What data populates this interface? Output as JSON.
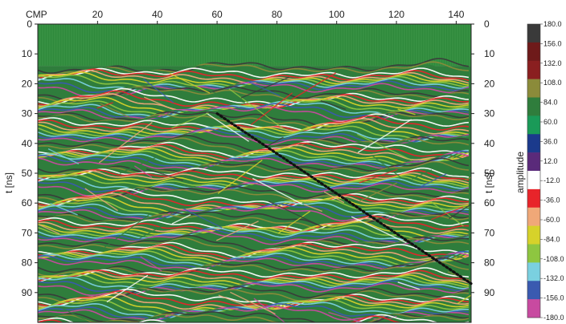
{
  "chart_data": {
    "type": "heatmap",
    "description_type": "ground-penetrating radar section",
    "x_axis": {
      "label": "CMP",
      "range": [
        0,
        145
      ],
      "ticks": [
        20,
        40,
        60,
        80,
        100,
        120,
        140
      ]
    },
    "y_axis": {
      "label": "t [ns]",
      "range": [
        0,
        100
      ],
      "inverted": true,
      "ticks": [
        0,
        10,
        20,
        30,
        40,
        50,
        60,
        70,
        80,
        90
      ]
    },
    "right_axis": {
      "label": "t [ns]",
      "ticks": [
        0,
        10,
        20,
        30,
        40,
        50,
        60,
        70,
        80,
        90
      ]
    },
    "colorbar": {
      "label": "amplitude",
      "range": [
        -180,
        180
      ],
      "tick_labels": [
        "180.0",
        "156.0",
        "132.0",
        "108.0",
        "84.0",
        "60.0",
        "36.0",
        "12.0",
        "-12.0",
        "-36.0",
        "-60.0",
        "-84.0",
        "-108.0",
        "-132.0",
        "-156.0",
        "-180.0"
      ],
      "colors": [
        "#3a3a3a",
        "#6e1a1a",
        "#8a1f20",
        "#8b8b3a",
        "#2f7d3c",
        "#1a9a58",
        "#1b3a8c",
        "#5a2a7a",
        "#ffffff",
        "#e8242a",
        "#f0a878",
        "#d6d22a",
        "#8ec640",
        "#7ad0e0",
        "#3a5ab0",
        "#c84aa0"
      ]
    },
    "annotation": {
      "type": "dotted diagonal line",
      "from": [
        60,
        30
      ],
      "to": [
        145,
        87
      ]
    },
    "flat_top_until_t": 14
  }
}
